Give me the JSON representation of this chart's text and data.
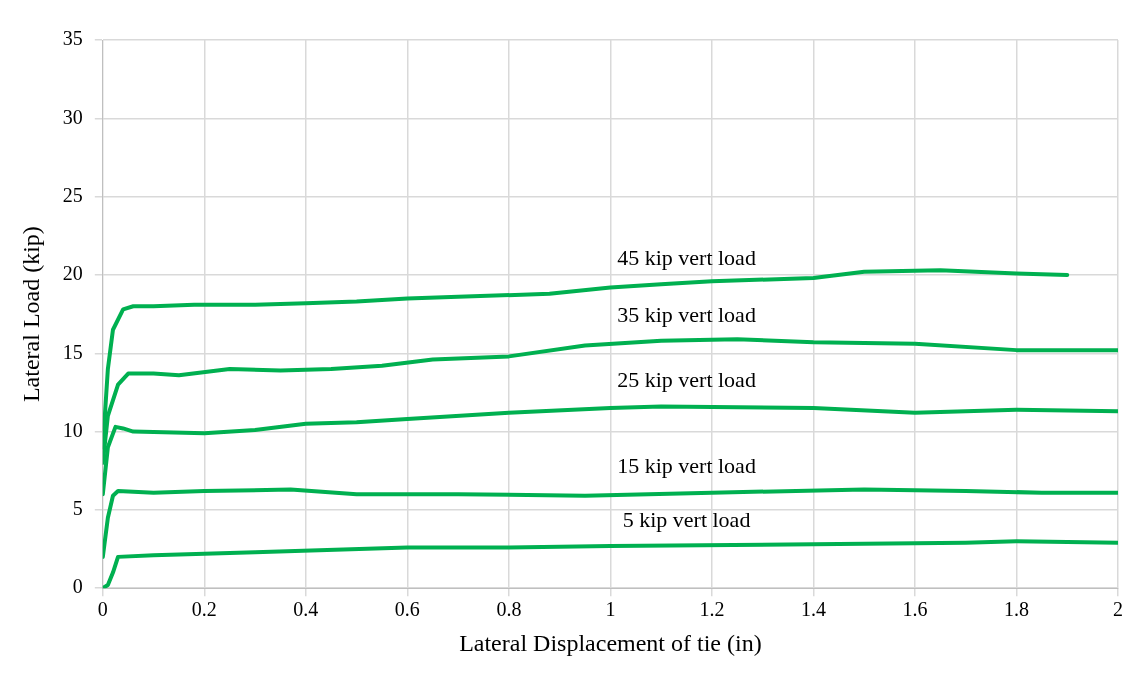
{
  "chart_data": {
    "type": "line",
    "xlabel": "Lateral Displacement of tie (in)",
    "ylabel": "Lateral Load (kip)",
    "xlim": [
      0,
      2
    ],
    "xticks": [
      0,
      0.2,
      0.4,
      0.6,
      0.8,
      1,
      1.2,
      1.4,
      1.6,
      1.8,
      2
    ],
    "ylim": [
      0,
      35
    ],
    "yticks": [
      0,
      5,
      10,
      15,
      20,
      25,
      30,
      35
    ],
    "grid": true,
    "legend": false,
    "marker": "none",
    "line_style": "solid",
    "series": [
      {
        "name": "45 kip vert load",
        "color": "#00b050",
        "x": [
          0,
          0.01,
          0.02,
          0.04,
          0.06,
          0.1,
          0.18,
          0.3,
          0.4,
          0.5,
          0.6,
          0.7,
          0.88,
          1.0,
          1.1,
          1.2,
          1.4,
          1.5,
          1.65,
          1.8,
          1.9
        ],
        "values": [
          9,
          14,
          16.5,
          17.8,
          18,
          18,
          18.1,
          18.1,
          18.2,
          18.3,
          18.5,
          18.6,
          18.8,
          19.2,
          19.4,
          19.6,
          19.8,
          20.2,
          20.3,
          20.1,
          20.0
        ]
      },
      {
        "name": "35 kip vert load",
        "color": "#00b050",
        "x": [
          0,
          0.01,
          0.03,
          0.05,
          0.1,
          0.15,
          0.25,
          0.35,
          0.45,
          0.55,
          0.65,
          0.8,
          0.95,
          1.1,
          1.25,
          1.4,
          1.6,
          1.8,
          2.0
        ],
        "values": [
          8,
          11,
          13,
          13.7,
          13.7,
          13.6,
          14,
          13.9,
          14,
          14.2,
          14.6,
          14.8,
          15.5,
          15.8,
          15.9,
          15.7,
          15.6,
          15.2,
          15.2
        ]
      },
      {
        "name": "25 kip vert load",
        "color": "#00b050",
        "x": [
          0,
          0.01,
          0.025,
          0.04,
          0.06,
          0.2,
          0.3,
          0.4,
          0.5,
          0.6,
          0.8,
          1.0,
          1.1,
          1.4,
          1.6,
          1.8,
          2.0
        ],
        "values": [
          6,
          9,
          10.3,
          10.2,
          10,
          9.9,
          10.1,
          10.5,
          10.6,
          10.8,
          11.2,
          11.5,
          11.6,
          11.5,
          11.2,
          11.4,
          11.3
        ]
      },
      {
        "name": "15 kip vert load",
        "color": "#00b050",
        "x": [
          0,
          0.01,
          0.02,
          0.03,
          0.1,
          0.2,
          0.37,
          0.5,
          0.7,
          0.95,
          1.2,
          1.5,
          1.7,
          1.85,
          2.0
        ],
        "values": [
          2,
          4.5,
          5.9,
          6.2,
          6.1,
          6.2,
          6.3,
          6.0,
          6.0,
          5.9,
          6.1,
          6.3,
          6.2,
          6.1,
          6.1
        ]
      },
      {
        "name": "5 kip vert load",
        "color": "#00b050",
        "x": [
          0,
          0.01,
          0.02,
          0.03,
          0.1,
          0.3,
          0.6,
          0.8,
          1.0,
          1.4,
          1.7,
          1.8,
          2.0
        ],
        "values": [
          0,
          0.2,
          1,
          2.0,
          2.1,
          2.3,
          2.6,
          2.6,
          2.7,
          2.8,
          2.9,
          3.0,
          2.9
        ]
      }
    ]
  }
}
